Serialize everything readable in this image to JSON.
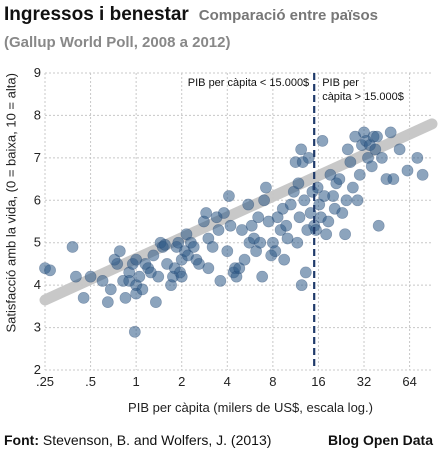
{
  "header": {
    "title": "Ingressos i benestar",
    "subtitle": "Comparació entre països",
    "subtitle2": "(Gallup World Poll, 2008 a 2012)"
  },
  "footer": {
    "source_label": "Font:",
    "source_text": " Stevenson, B. and Wolfers, J. (2013)",
    "brand": "Blog Open Data"
  },
  "chart_data": {
    "type": "scatter",
    "xlabel": "PIB per càpita (milers de US$, escala log.)",
    "ylabel": "Satisfacció amb la vida, (0 = baixa, 10 = alta)",
    "x_scale": "log2",
    "xlim": [
      0.25,
      90
    ],
    "ylim": [
      2,
      9
    ],
    "grid": true,
    "x_ticks": [
      0.25,
      0.5,
      1,
      2,
      4,
      8,
      16,
      32,
      64
    ],
    "x_tick_labels": [
      ".25",
      ".5",
      "1",
      "2",
      "4",
      "8",
      "16",
      "32",
      "64"
    ],
    "y_ticks": [
      2,
      3,
      4,
      5,
      6,
      7,
      8,
      9
    ],
    "y_tick_labels": [
      "2",
      "3",
      "4",
      "5",
      "6",
      "7",
      "8",
      "9"
    ],
    "threshold": {
      "x": 15,
      "label_left": "PIB per càpita < 15.000$",
      "label_right_line1": "PIB per",
      "label_right_line2": "càpita > 15.000$"
    },
    "trend": {
      "x": [
        0.25,
        90
      ],
      "y": [
        3.65,
        7.8
      ]
    },
    "colors": {
      "points": "#2e5a87",
      "trend": "#c6c6c6",
      "threshold": "#1f3a6a",
      "grid": "#c8c8c8"
    },
    "points": [
      [
        0.25,
        4.4
      ],
      [
        0.27,
        4.35
      ],
      [
        0.38,
        4.9
      ],
      [
        0.4,
        4.2
      ],
      [
        0.45,
        3.7
      ],
      [
        0.5,
        4.2
      ],
      [
        0.6,
        4.1
      ],
      [
        0.65,
        3.6
      ],
      [
        0.68,
        3.9
      ],
      [
        0.72,
        4.6
      ],
      [
        0.75,
        4.5
      ],
      [
        0.78,
        4.8
      ],
      [
        0.82,
        4.1
      ],
      [
        0.85,
        3.7
      ],
      [
        0.9,
        4.3
      ],
      [
        0.9,
        4.1
      ],
      [
        0.95,
        4.5
      ],
      [
        1.0,
        4.0
      ],
      [
        1.0,
        3.8
      ],
      [
        1.0,
        4.6
      ],
      [
        1.05,
        4.2
      ],
      [
        1.1,
        3.9
      ],
      [
        1.15,
        4.5
      ],
      [
        1.2,
        4.4
      ],
      [
        1.25,
        4.3
      ],
      [
        1.3,
        4.7
      ],
      [
        1.35,
        3.6
      ],
      [
        1.4,
        4.2
      ],
      [
        1.45,
        5.0
      ],
      [
        1.5,
        4.9
      ],
      [
        1.55,
        4.95
      ],
      [
        1.6,
        4.5
      ],
      [
        1.7,
        4.0
      ],
      [
        1.75,
        4.2
      ],
      [
        1.8,
        4.4
      ],
      [
        1.85,
        4.9
      ],
      [
        1.9,
        5.0
      ],
      [
        1.95,
        4.3
      ],
      [
        2.0,
        4.6
      ],
      [
        2.0,
        4.2
      ],
      [
        2.1,
        4.8
      ],
      [
        2.15,
        5.2
      ],
      [
        2.2,
        4.7
      ],
      [
        2.3,
        5.0
      ],
      [
        2.4,
        4.9
      ],
      [
        2.5,
        4.6
      ],
      [
        2.6,
        4.5
      ],
      [
        2.8,
        5.5
      ],
      [
        2.9,
        5.7
      ],
      [
        3.0,
        5.1
      ],
      [
        3.2,
        4.9
      ],
      [
        3.4,
        5.6
      ],
      [
        3.5,
        5.3
      ],
      [
        3.6,
        4.1
      ],
      [
        3.8,
        5.7
      ],
      [
        4.0,
        4.8
      ],
      [
        4.1,
        6.1
      ],
      [
        4.2,
        5.4
      ],
      [
        4.4,
        4.3
      ],
      [
        4.5,
        4.4
      ],
      [
        4.6,
        4.2
      ],
      [
        4.8,
        4.4
      ],
      [
        5.0,
        5.3
      ],
      [
        5.2,
        4.6
      ],
      [
        5.5,
        5.9
      ],
      [
        5.6,
        5.0
      ],
      [
        5.8,
        5.4
      ],
      [
        6.0,
        5.1
      ],
      [
        6.2,
        4.8
      ],
      [
        6.4,
        5.6
      ],
      [
        6.6,
        5.0
      ],
      [
        6.8,
        4.2
      ],
      [
        7.0,
        6.0
      ],
      [
        7.2,
        6.3
      ],
      [
        7.5,
        5.5
      ],
      [
        7.8,
        4.7
      ],
      [
        8.0,
        5.0
      ],
      [
        8.3,
        4.8
      ],
      [
        8.6,
        5.6
      ],
      [
        9.0,
        5.3
      ],
      [
        9.3,
        5.8
      ],
      [
        9.5,
        4.6
      ],
      [
        9.8,
        5.4
      ],
      [
        10,
        5.1
      ],
      [
        10.5,
        5.9
      ],
      [
        11,
        6.2
      ],
      [
        11.3,
        6.9
      ],
      [
        11.6,
        5.0
      ],
      [
        11.8,
        6.4
      ],
      [
        12,
        5.6
      ],
      [
        12.3,
        7.2
      ],
      [
        12.6,
        6.9
      ],
      [
        12.9,
        6.0
      ],
      [
        13.2,
        4.3
      ],
      [
        13.5,
        5.3
      ],
      [
        13.8,
        7.0
      ],
      [
        14.2,
        5.7
      ],
      [
        14.6,
        6.2
      ],
      [
        15,
        5.4
      ],
      [
        15.4,
        5.3
      ],
      [
        15.8,
        6.3
      ],
      [
        16.2,
        5.9
      ],
      [
        16.6,
        5.6
      ],
      [
        17,
        7.4
      ],
      [
        17.5,
        6.1
      ],
      [
        18,
        5.2
      ],
      [
        18.6,
        5.5
      ],
      [
        19.2,
        6.6
      ],
      [
        20,
        6.1
      ],
      [
        20.5,
        5.8
      ],
      [
        21,
        6.4
      ],
      [
        22,
        6.5
      ],
      [
        23,
        5.7
      ],
      [
        24,
        5.2
      ],
      [
        25,
        7.2
      ],
      [
        26,
        6.9
      ],
      [
        27,
        6.3
      ],
      [
        28,
        7.5
      ],
      [
        29,
        6.0
      ],
      [
        30,
        6.6
      ],
      [
        31,
        7.3
      ],
      [
        32,
        7.6
      ],
      [
        33,
        7.4
      ],
      [
        34,
        7.0
      ],
      [
        35,
        7.3
      ],
      [
        36,
        6.8
      ],
      [
        37,
        7.5
      ],
      [
        38,
        7.2
      ],
      [
        39,
        7.5
      ],
      [
        40,
        5.4
      ],
      [
        42,
        7.0
      ],
      [
        45,
        6.5
      ],
      [
        48,
        7.6
      ],
      [
        50,
        6.5
      ],
      [
        55,
        7.2
      ],
      [
        62,
        6.7
      ],
      [
        72,
        7.0
      ],
      [
        78,
        6.6
      ],
      [
        0.98,
        2.9
      ],
      [
        3.0,
        4.4
      ],
      [
        12.4,
        4.0
      ],
      [
        24.5,
        6.0
      ]
    ]
  }
}
